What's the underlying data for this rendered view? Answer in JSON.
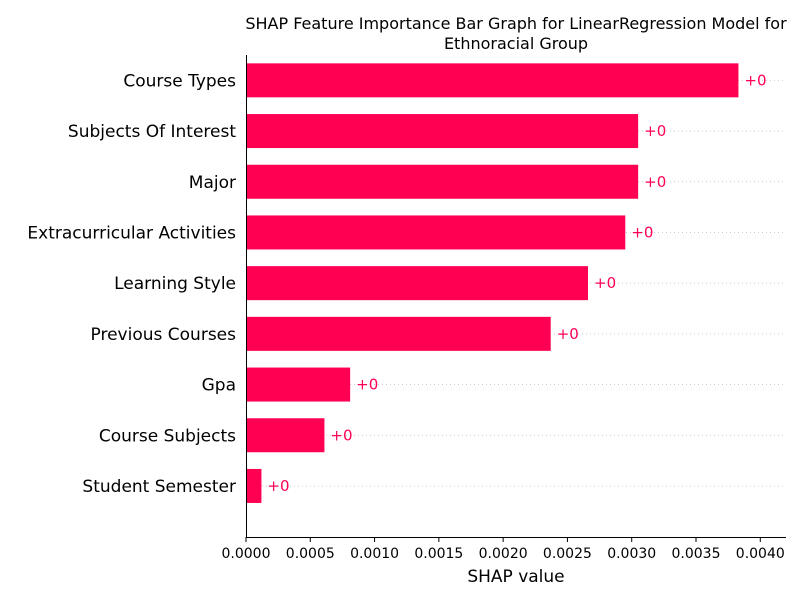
{
  "chart_data": {
    "type": "bar",
    "orientation": "horizontal",
    "title_lines": [
      "SHAP Feature Importance Bar Graph for LinearRegression Model for",
      "Ethnoracial Group"
    ],
    "xlabel": "SHAP value",
    "ylabel": "",
    "categories": [
      "Course Types",
      "Subjects Of Interest",
      "Major",
      "Extracurricular Activities",
      "Learning Style",
      "Previous Courses",
      "Gpa",
      "Course Subjects",
      "Student Semester"
    ],
    "values": [
      0.00383,
      0.00305,
      0.00305,
      0.00295,
      0.00266,
      0.00237,
      0.00081,
      0.00061,
      0.00012
    ],
    "value_labels": [
      "+0",
      "+0",
      "+0",
      "+0",
      "+0",
      "+0",
      "+0",
      "+0",
      "+0"
    ],
    "xlim": [
      0,
      0.0042
    ],
    "xticks": [
      0,
      0.0005,
      0.001,
      0.0015,
      0.002,
      0.0025,
      0.003,
      0.0035,
      0.004
    ],
    "xtick_labels": [
      "0.0000",
      "0.0005",
      "0.0010",
      "0.0015",
      "0.0020",
      "0.0025",
      "0.0030",
      "0.0035",
      "0.0040"
    ],
    "grid": "dotted horizontal row guides",
    "bar_color": "#ff0052",
    "label_color": "#ff0052"
  }
}
